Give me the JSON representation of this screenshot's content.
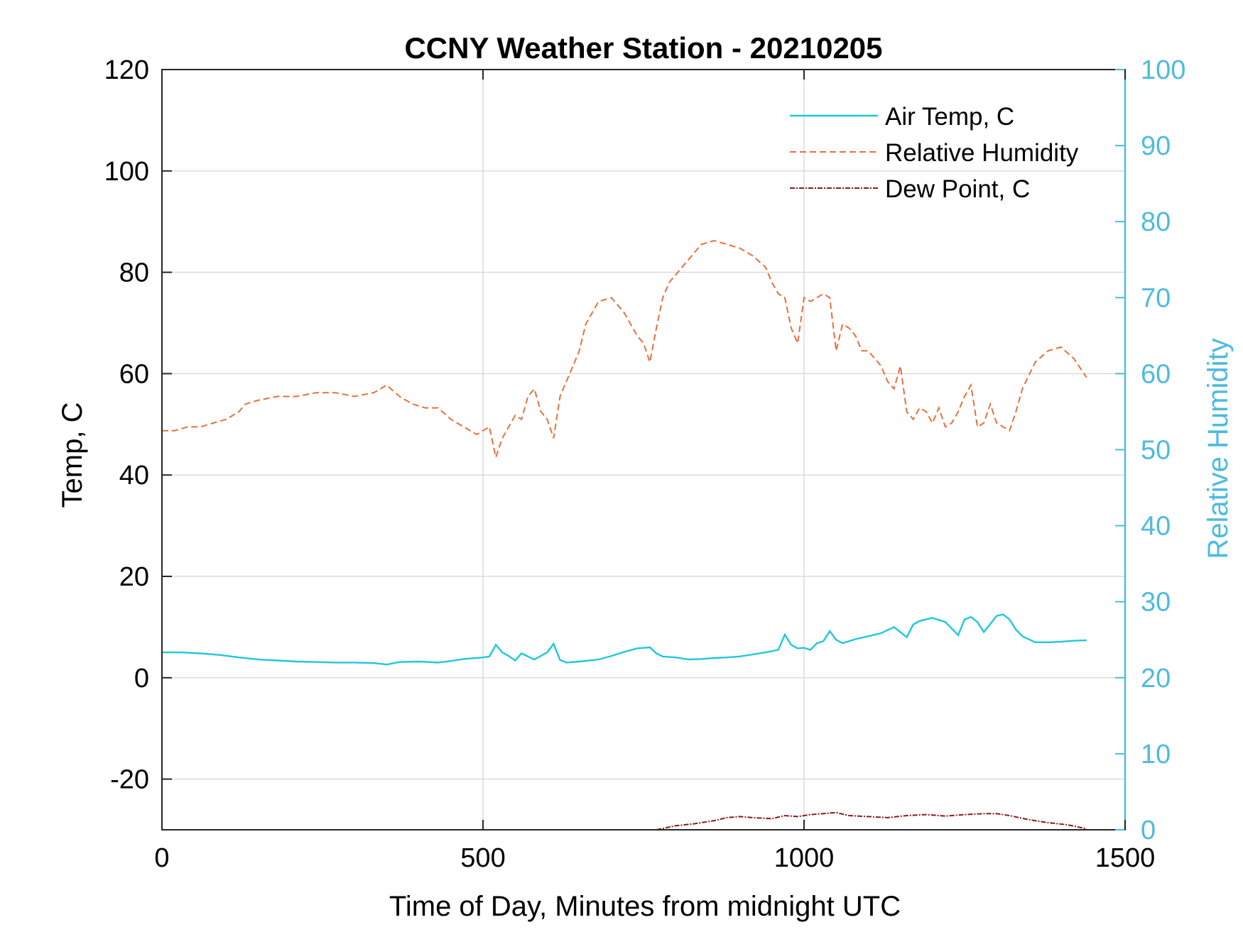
{
  "chart_data": {
    "type": "line",
    "title": "CCNY Weather Station - 20210205",
    "xlabel": "Time of Day, Minutes from midnight UTC",
    "ylabel_left": "Temp, C",
    "ylabel_right": "Relative Humidity",
    "xlim": [
      0,
      1500
    ],
    "ylim_left": [
      -30,
      120
    ],
    "ylim_right": [
      0,
      100
    ],
    "x_ticks": [
      0,
      500,
      1000,
      1500
    ],
    "y_ticks_left": [
      -20,
      0,
      20,
      40,
      60,
      80,
      100,
      120
    ],
    "y_ticks_right": [
      0,
      10,
      20,
      30,
      40,
      50,
      60,
      70,
      80,
      90,
      100
    ],
    "grid": true,
    "legend_position": "top-right",
    "colors": {
      "air_temp": "#1ec8dc",
      "humidity": "#e8703a",
      "dew_point": "#8b1a1a",
      "right_axis": "#4dbbe0"
    },
    "series": [
      {
        "name": "Air Temp, C",
        "axis": "left",
        "style": "solid",
        "x": [
          0,
          30,
          60,
          90,
          120,
          150,
          180,
          210,
          240,
          270,
          300,
          330,
          350,
          370,
          400,
          430,
          450,
          470,
          500,
          510,
          520,
          530,
          540,
          550,
          560,
          580,
          600,
          610,
          620,
          630,
          650,
          680,
          700,
          720,
          740,
          760,
          770,
          780,
          800,
          820,
          840,
          860,
          880,
          900,
          920,
          940,
          960,
          970,
          980,
          990,
          1000,
          1010,
          1020,
          1030,
          1040,
          1050,
          1060,
          1080,
          1100,
          1120,
          1140,
          1150,
          1160,
          1170,
          1180,
          1200,
          1220,
          1240,
          1250,
          1260,
          1270,
          1280,
          1300,
          1310,
          1320,
          1330,
          1340,
          1360,
          1380,
          1400,
          1420,
          1440
        ],
        "y": [
          5.0,
          5.0,
          4.8,
          4.5,
          4.0,
          3.6,
          3.4,
          3.2,
          3.1,
          3.0,
          3.0,
          2.9,
          2.6,
          3.1,
          3.2,
          3.0,
          3.3,
          3.7,
          4.0,
          4.2,
          6.5,
          5.0,
          4.3,
          3.4,
          4.8,
          3.6,
          5.0,
          6.7,
          3.5,
          3.0,
          3.2,
          3.6,
          4.3,
          5.1,
          5.8,
          6.0,
          4.8,
          4.2,
          4.0,
          3.6,
          3.7,
          3.9,
          4.0,
          4.2,
          4.6,
          5.0,
          5.5,
          8.5,
          6.5,
          5.8,
          5.9,
          5.5,
          6.8,
          7.2,
          9.2,
          7.5,
          6.8,
          7.6,
          8.2,
          8.8,
          10.0,
          9.0,
          8.0,
          10.5,
          11.2,
          11.8,
          11.0,
          8.4,
          11.5,
          12.0,
          11.0,
          9.0,
          12.2,
          12.5,
          11.5,
          9.5,
          8.2,
          7.0,
          7.0,
          7.1,
          7.3,
          7.4
        ]
      },
      {
        "name": "Relative Humidity",
        "axis": "right",
        "style": "dashed",
        "x": [
          0,
          20,
          40,
          60,
          80,
          100,
          120,
          130,
          150,
          180,
          210,
          240,
          270,
          300,
          330,
          350,
          370,
          390,
          410,
          430,
          450,
          470,
          490,
          500,
          510,
          520,
          530,
          540,
          550,
          560,
          570,
          580,
          590,
          600,
          610,
          620,
          630,
          640,
          650,
          660,
          680,
          700,
          720,
          740,
          750,
          760,
          770,
          780,
          790,
          800,
          820,
          840,
          860,
          880,
          900,
          920,
          940,
          950,
          960,
          970,
          980,
          990,
          1000,
          1010,
          1020,
          1030,
          1040,
          1050,
          1060,
          1070,
          1080,
          1090,
          1100,
          1110,
          1120,
          1130,
          1140,
          1150,
          1160,
          1170,
          1180,
          1190,
          1200,
          1210,
          1220,
          1230,
          1240,
          1250,
          1260,
          1270,
          1280,
          1290,
          1300,
          1310,
          1320,
          1330,
          1340,
          1360,
          1380,
          1400,
          1420,
          1440
        ],
        "y": [
          52.5,
          52.5,
          53.0,
          53.0,
          53.5,
          54.0,
          55.0,
          56.0,
          56.5,
          57.0,
          57.0,
          57.5,
          57.5,
          57.0,
          57.5,
          58.5,
          57.0,
          56.0,
          55.5,
          55.5,
          54.0,
          53.0,
          52.0,
          52.5,
          53.0,
          49.0,
          51.5,
          53.0,
          54.5,
          54.0,
          57.0,
          58.0,
          55.0,
          54.0,
          51.5,
          57.0,
          59.0,
          61.0,
          63.0,
          66.5,
          69.5,
          70.0,
          68.0,
          65.0,
          64.0,
          61.5,
          66.0,
          70.0,
          72.0,
          73.0,
          75.0,
          77.0,
          77.5,
          77.0,
          76.5,
          75.5,
          74.0,
          72.0,
          70.5,
          70.0,
          66.0,
          64.0,
          70.0,
          69.5,
          70.0,
          70.5,
          70.0,
          63.0,
          66.5,
          66.0,
          65.0,
          63.0,
          63.0,
          62.0,
          61.0,
          59.0,
          58.0,
          61.0,
          55.0,
          54.0,
          55.5,
          55.0,
          53.5,
          55.5,
          53.0,
          53.5,
          55.0,
          57.0,
          58.5,
          53.0,
          53.5,
          56.0,
          53.5,
          53.0,
          52.5,
          55.0,
          58.0,
          61.5,
          63.0,
          63.5,
          62.0,
          59.5
        ]
      },
      {
        "name": "Dew Point, C",
        "axis": "left",
        "style": "dashdot",
        "x": [
          770,
          800,
          830,
          860,
          880,
          900,
          920,
          950,
          970,
          990,
          1010,
          1030,
          1050,
          1070,
          1100,
          1130,
          1160,
          1190,
          1220,
          1250,
          1280,
          1300,
          1320,
          1350,
          1380,
          1410,
          1440
        ],
        "y": [
          -30.0,
          -29.2,
          -28.8,
          -28.2,
          -27.6,
          -27.4,
          -27.6,
          -27.8,
          -27.2,
          -27.4,
          -27.0,
          -26.8,
          -26.6,
          -27.2,
          -27.4,
          -27.6,
          -27.2,
          -27.0,
          -27.3,
          -27.0,
          -26.8,
          -26.8,
          -27.2,
          -28.0,
          -28.6,
          -29.0,
          -29.8
        ]
      }
    ]
  }
}
